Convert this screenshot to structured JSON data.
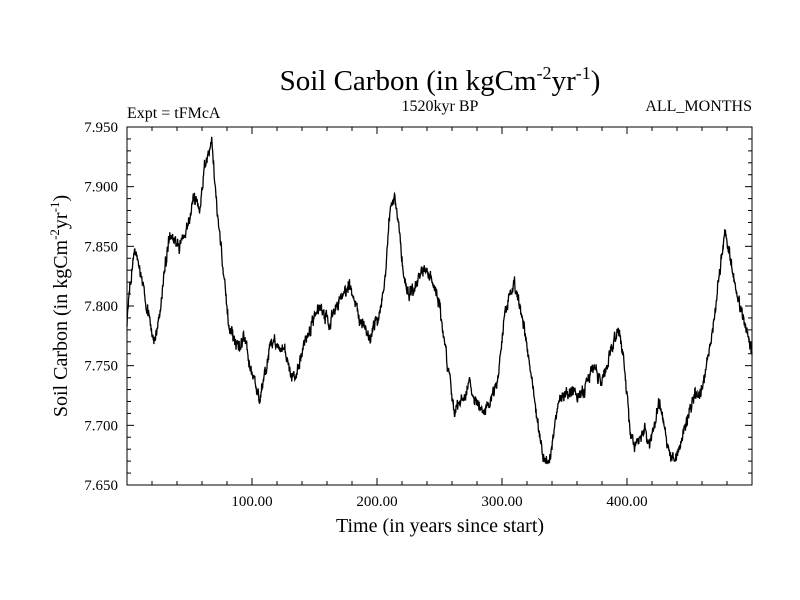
{
  "chart_data": {
    "type": "line",
    "title": "Soil Carbon (in kgCm",
    "title_sup1": "-2",
    "title_mid": "yr",
    "title_sup2": "-1",
    "title_end": ")",
    "subtitle_left": "Expt = tFMcA",
    "subtitle_center": "1520kyr BP",
    "subtitle_right": "ALL_MONTHS",
    "xlabel": "Time (in years since start)",
    "ylabel": "Soil Carbon (in kgCm",
    "ylabel_sup1": "-2",
    "ylabel_mid": "yr",
    "ylabel_sup2": "-1",
    "ylabel_end": ")",
    "xlim": [
      0,
      500
    ],
    "ylim": [
      7.65,
      7.95
    ],
    "xticks": [
      100,
      200,
      300,
      400
    ],
    "xtick_labels": [
      "100.00",
      "200.00",
      "300.00",
      "400.00"
    ],
    "yticks": [
      7.65,
      7.7,
      7.75,
      7.8,
      7.85,
      7.9,
      7.95
    ],
    "ytick_labels": [
      "7.650",
      "7.700",
      "7.750",
      "7.800",
      "7.850",
      "7.900",
      "7.950"
    ],
    "grid": false,
    "series": [
      {
        "name": "Soil Carbon",
        "color": "#000000",
        "noise": 0.007,
        "x": [
          0,
          3,
          6,
          10,
          14,
          18,
          22,
          26,
          30,
          34,
          38,
          42,
          46,
          50,
          54,
          58,
          62,
          66,
          68,
          70,
          74,
          78,
          82,
          86,
          90,
          94,
          98,
          102,
          106,
          110,
          114,
          118,
          122,
          126,
          130,
          134,
          138,
          142,
          146,
          150,
          154,
          158,
          162,
          166,
          170,
          174,
          178,
          182,
          186,
          190,
          194,
          198,
          202,
          206,
          210,
          214,
          218,
          222,
          226,
          230,
          234,
          238,
          242,
          246,
          250,
          254,
          258,
          262,
          266,
          270,
          274,
          278,
          282,
          286,
          290,
          294,
          298,
          302,
          306,
          310,
          314,
          318,
          322,
          326,
          330,
          334,
          338,
          342,
          346,
          350,
          354,
          358,
          362,
          366,
          370,
          374,
          378,
          382,
          386,
          390,
          394,
          398,
          402,
          406,
          410,
          414,
          418,
          422,
          426,
          430,
          434,
          438,
          442,
          446,
          450,
          454,
          458,
          462,
          466,
          470,
          474,
          478,
          482,
          486,
          490,
          494,
          498,
          500
        ],
        "y": [
          7.785,
          7.82,
          7.848,
          7.83,
          7.81,
          7.79,
          7.77,
          7.79,
          7.83,
          7.86,
          7.855,
          7.85,
          7.86,
          7.875,
          7.89,
          7.88,
          7.915,
          7.93,
          7.935,
          7.91,
          7.86,
          7.82,
          7.78,
          7.77,
          7.765,
          7.775,
          7.75,
          7.74,
          7.72,
          7.74,
          7.765,
          7.77,
          7.76,
          7.765,
          7.745,
          7.74,
          7.75,
          7.77,
          7.78,
          7.79,
          7.8,
          7.79,
          7.785,
          7.795,
          7.805,
          7.81,
          7.82,
          7.805,
          7.79,
          7.785,
          7.77,
          7.785,
          7.79,
          7.82,
          7.875,
          7.895,
          7.86,
          7.82,
          7.81,
          7.815,
          7.825,
          7.83,
          7.825,
          7.815,
          7.8,
          7.77,
          7.74,
          7.71,
          7.72,
          7.725,
          7.735,
          7.72,
          7.715,
          7.71,
          7.72,
          7.73,
          7.75,
          7.79,
          7.81,
          7.82,
          7.8,
          7.78,
          7.75,
          7.72,
          7.69,
          7.67,
          7.67,
          7.7,
          7.72,
          7.725,
          7.725,
          7.73,
          7.725,
          7.73,
          7.74,
          7.75,
          7.735,
          7.745,
          7.76,
          7.775,
          7.78,
          7.75,
          7.7,
          7.68,
          7.69,
          7.7,
          7.685,
          7.7,
          7.72,
          7.7,
          7.675,
          7.67,
          7.68,
          7.7,
          7.71,
          7.725,
          7.725,
          7.74,
          7.76,
          7.79,
          7.83,
          7.86,
          7.845,
          7.82,
          7.8,
          7.785,
          7.77,
          7.76
        ]
      }
    ]
  }
}
